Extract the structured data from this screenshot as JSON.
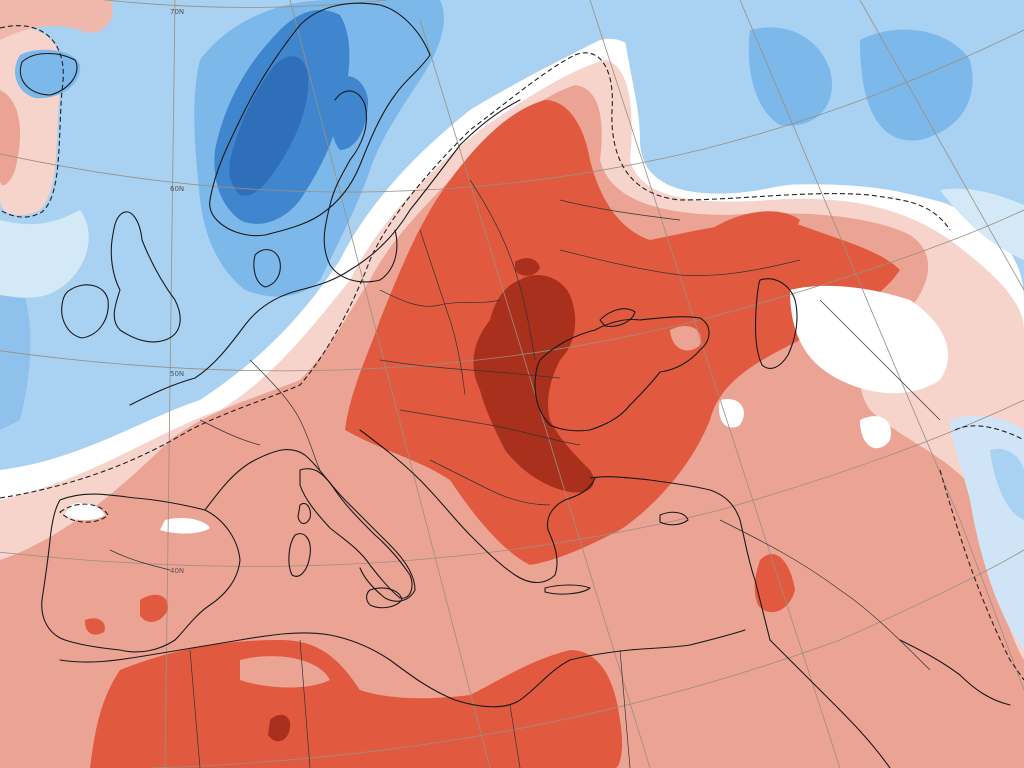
{
  "map": {
    "latitude_labels": [
      "70N",
      "60N",
      "50N",
      "40N"
    ]
  },
  "palette": {
    "cold_strong": "#2f6fb9",
    "cold_medium": "#5fa3e0",
    "cold_light": "#a9d1f2",
    "cold_faint": "#d4e9f8",
    "neutral": "#ffffff",
    "warm_faint": "#f6d3cb",
    "warm_light": "#eba394",
    "warm_medium": "#e15a3f",
    "warm_strong": "#a9301c"
  }
}
